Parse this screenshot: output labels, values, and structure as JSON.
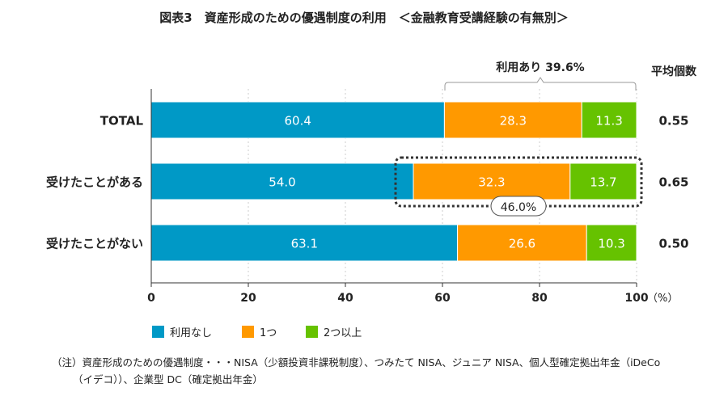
{
  "chart_data": {
    "type": "bar",
    "orientation": "horizontal-stacked",
    "title": "図表3　資産形成のための優遇制度の利用　＜金融教育受講経験の有無別＞",
    "categories": [
      "TOTAL",
      "受けたことがある",
      "受けたことがない"
    ],
    "series": [
      {
        "name": "利用なし",
        "color": "#0099c6",
        "values": [
          60.4,
          54.0,
          63.1
        ]
      },
      {
        "name": "1つ",
        "color": "#ff9900",
        "values": [
          28.3,
          32.3,
          26.6
        ]
      },
      {
        "name": "2つ以上",
        "color": "#66c200",
        "values": [
          11.3,
          13.7,
          10.3
        ]
      }
    ],
    "xlim": [
      0,
      100
    ],
    "xticks": [
      "0",
      "20",
      "40",
      "60",
      "80",
      "100"
    ],
    "xunit": "（%）",
    "grid": true,
    "legend": "bottom",
    "avg_header": "平均個数",
    "averages": [
      "0.55",
      "0.65",
      "0.50"
    ],
    "annotations": {
      "brace_label": "利用あり 39.6%",
      "box_label": "46.0%"
    }
  },
  "note": {
    "line1": "（注）資産形成のための優遇制度・・・NISA（少額投資非課税制度）、つみたて NISA、ジュニア NISA、個人型確定拠出年金（iDeCo",
    "line2": "（イデコ））、企業型 DC（確定拠出年金）"
  }
}
